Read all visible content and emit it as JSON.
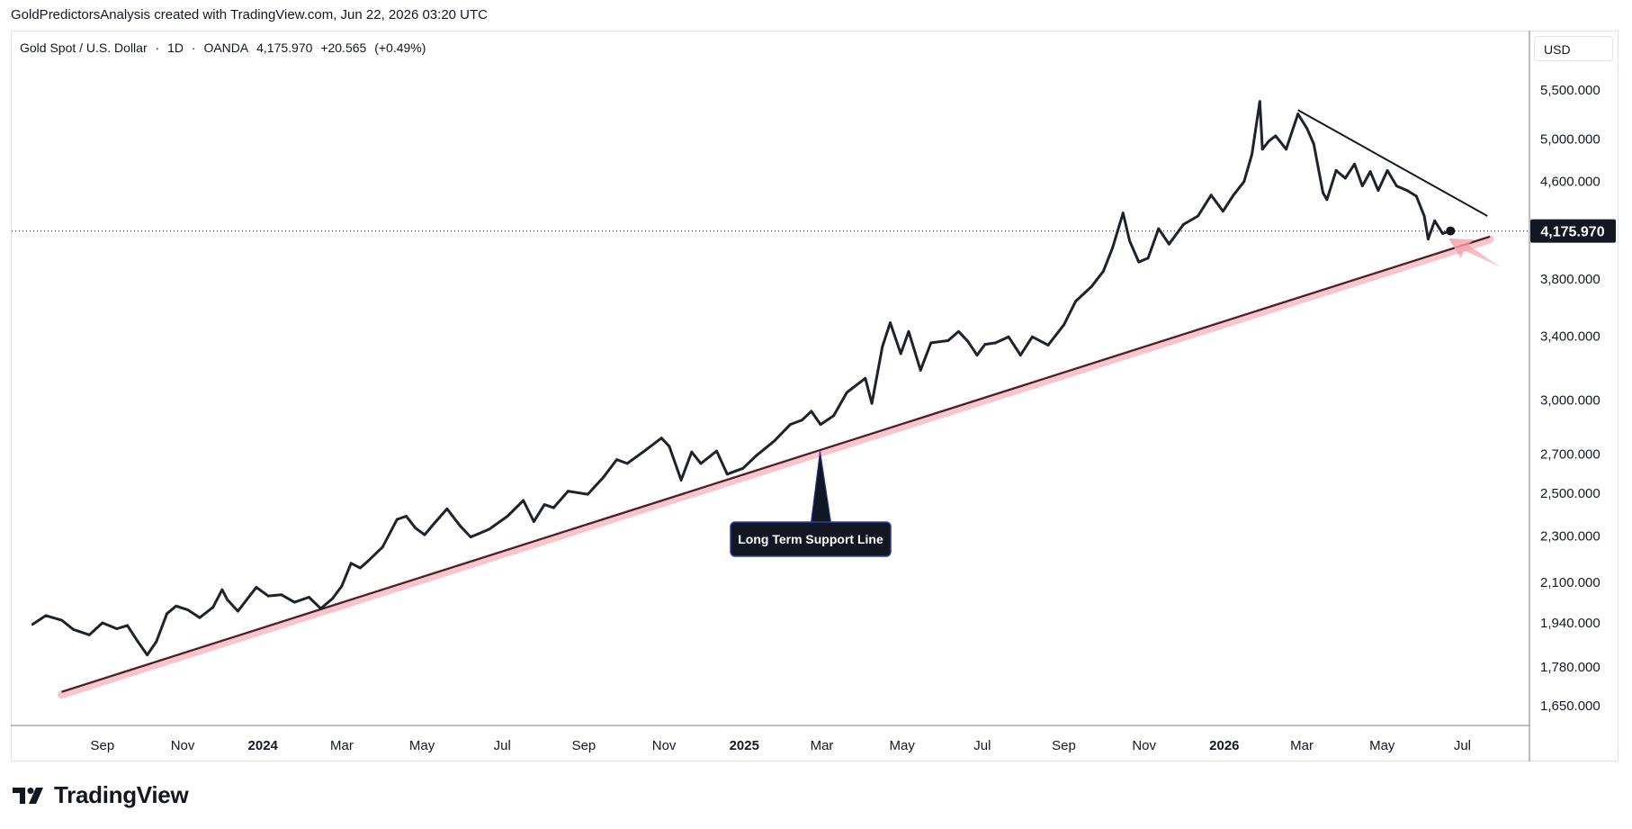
{
  "header": {
    "text": "GoldPredictorsAnalysis created with TradingView.com, Jun 22, 2026 03:20 UTC"
  },
  "symbol": {
    "name": "Gold Spot / U.S. Dollar",
    "interval": "1D",
    "exchange": "OANDA",
    "last": "4,175.970",
    "change": "+20.565",
    "change_pct": "(+0.49%)",
    "separator": "·"
  },
  "currency_label": "USD",
  "price_tag": "4,175.970",
  "annotation": {
    "label": "Long Term Support Line"
  },
  "brand": {
    "name": "TradingView"
  },
  "colors": {
    "price_line": "#1e222d",
    "support_line": "#4a1f24",
    "support_glow": "#f7c6cc",
    "arrow": "#f6a3ab",
    "annotation_bg": "#131722",
    "annotation_border": "#2f3ea8",
    "price_tag_bg": "#131722"
  },
  "chart_data": {
    "type": "line",
    "series": [
      {
        "points": [
          [
            "2023-07-10",
            1935
          ],
          [
            "2023-07-20",
            1968
          ],
          [
            "2023-08-01",
            1950
          ],
          [
            "2023-08-10",
            1915
          ],
          [
            "2023-08-22",
            1895
          ],
          [
            "2023-09-01",
            1940
          ],
          [
            "2023-09-12",
            1918
          ],
          [
            "2023-09-20",
            1930
          ],
          [
            "2023-09-28",
            1870
          ],
          [
            "2023-10-05",
            1822
          ],
          [
            "2023-10-12",
            1870
          ],
          [
            "2023-10-20",
            1975
          ],
          [
            "2023-10-27",
            2005
          ],
          [
            "2023-11-05",
            1990
          ],
          [
            "2023-11-14",
            1960
          ],
          [
            "2023-11-24",
            2000
          ],
          [
            "2023-12-01",
            2070
          ],
          [
            "2023-12-05",
            2030
          ],
          [
            "2023-12-13",
            1985
          ],
          [
            "2023-12-27",
            2080
          ],
          [
            "2024-01-05",
            2045
          ],
          [
            "2024-01-15",
            2050
          ],
          [
            "2024-01-25",
            2020
          ],
          [
            "2024-02-05",
            2040
          ],
          [
            "2024-02-14",
            1995
          ],
          [
            "2024-02-23",
            2035
          ],
          [
            "2024-03-01",
            2085
          ],
          [
            "2024-03-08",
            2180
          ],
          [
            "2024-03-15",
            2160
          ],
          [
            "2024-03-21",
            2190
          ],
          [
            "2024-04-01",
            2250
          ],
          [
            "2024-04-12",
            2375
          ],
          [
            "2024-04-19",
            2390
          ],
          [
            "2024-04-26",
            2335
          ],
          [
            "2024-05-03",
            2305
          ],
          [
            "2024-05-10",
            2355
          ],
          [
            "2024-05-20",
            2425
          ],
          [
            "2024-05-30",
            2345
          ],
          [
            "2024-06-07",
            2295
          ],
          [
            "2024-06-21",
            2330
          ],
          [
            "2024-07-05",
            2390
          ],
          [
            "2024-07-17",
            2465
          ],
          [
            "2024-07-25",
            2365
          ],
          [
            "2024-08-02",
            2445
          ],
          [
            "2024-08-09",
            2430
          ],
          [
            "2024-08-20",
            2510
          ],
          [
            "2024-09-04",
            2495
          ],
          [
            "2024-09-16",
            2580
          ],
          [
            "2024-09-26",
            2670
          ],
          [
            "2024-10-04",
            2650
          ],
          [
            "2024-10-18",
            2720
          ],
          [
            "2024-10-30",
            2785
          ],
          [
            "2024-11-05",
            2740
          ],
          [
            "2024-11-14",
            2565
          ],
          [
            "2024-11-22",
            2710
          ],
          [
            "2024-11-29",
            2650
          ],
          [
            "2024-12-11",
            2715
          ],
          [
            "2024-12-19",
            2595
          ],
          [
            "2024-12-31",
            2625
          ],
          [
            "2025-01-10",
            2690
          ],
          [
            "2025-01-24",
            2770
          ],
          [
            "2025-02-05",
            2860
          ],
          [
            "2025-02-14",
            2885
          ],
          [
            "2025-02-21",
            2935
          ],
          [
            "2025-02-28",
            2860
          ],
          [
            "2025-03-10",
            2910
          ],
          [
            "2025-03-20",
            3045
          ],
          [
            "2025-04-03",
            3130
          ],
          [
            "2025-04-08",
            2980
          ],
          [
            "2025-04-16",
            3330
          ],
          [
            "2025-04-22",
            3490
          ],
          [
            "2025-04-30",
            3285
          ],
          [
            "2025-05-06",
            3430
          ],
          [
            "2025-05-15",
            3180
          ],
          [
            "2025-05-23",
            3355
          ],
          [
            "2025-06-05",
            3370
          ],
          [
            "2025-06-13",
            3430
          ],
          [
            "2025-06-20",
            3365
          ],
          [
            "2025-06-27",
            3275
          ],
          [
            "2025-07-03",
            3345
          ],
          [
            "2025-07-11",
            3355
          ],
          [
            "2025-07-21",
            3395
          ],
          [
            "2025-07-30",
            3275
          ],
          [
            "2025-08-08",
            3395
          ],
          [
            "2025-08-20",
            3340
          ],
          [
            "2025-09-01",
            3475
          ],
          [
            "2025-09-10",
            3640
          ],
          [
            "2025-09-22",
            3745
          ],
          [
            "2025-10-01",
            3860
          ],
          [
            "2025-10-08",
            4040
          ],
          [
            "2025-10-16",
            4325
          ],
          [
            "2025-10-21",
            4095
          ],
          [
            "2025-10-28",
            3930
          ],
          [
            "2025-11-04",
            3960
          ],
          [
            "2025-11-12",
            4195
          ],
          [
            "2025-11-20",
            4070
          ],
          [
            "2025-12-01",
            4230
          ],
          [
            "2025-12-12",
            4300
          ],
          [
            "2025-12-22",
            4480
          ],
          [
            "2025-12-31",
            4340
          ],
          [
            "2026-01-08",
            4480
          ],
          [
            "2026-01-16",
            4600
          ],
          [
            "2026-01-22",
            4850
          ],
          [
            "2026-01-28",
            5380
          ],
          [
            "2026-01-30",
            4900
          ],
          [
            "2026-02-04",
            4980
          ],
          [
            "2026-02-09",
            5030
          ],
          [
            "2026-02-17",
            4900
          ],
          [
            "2026-02-26",
            5250
          ],
          [
            "2026-03-05",
            5100
          ],
          [
            "2026-03-10",
            4950
          ],
          [
            "2026-03-17",
            4500
          ],
          [
            "2026-03-20",
            4440
          ],
          [
            "2026-03-27",
            4700
          ],
          [
            "2026-04-03",
            4630
          ],
          [
            "2026-04-10",
            4760
          ],
          [
            "2026-04-16",
            4560
          ],
          [
            "2026-04-22",
            4690
          ],
          [
            "2026-04-28",
            4520
          ],
          [
            "2026-05-05",
            4700
          ],
          [
            "2026-05-12",
            4560
          ],
          [
            "2026-05-20",
            4520
          ],
          [
            "2026-05-27",
            4470
          ],
          [
            "2026-06-02",
            4300
          ],
          [
            "2026-06-05",
            4110
          ],
          [
            "2026-06-10",
            4260
          ],
          [
            "2026-06-16",
            4155
          ],
          [
            "2026-06-22",
            4175.97
          ]
        ]
      }
    ],
    "trendlines": [
      {
        "from": [
          "2023-08-01",
          1695
        ],
        "to": [
          "2026-07-22",
          4130
        ]
      },
      {
        "from": [
          "2026-02-26",
          5290
        ],
        "to": [
          "2026-07-20",
          4300
        ]
      }
    ],
    "y_scale": "log",
    "ylim": [
      1590,
      5800
    ],
    "xlim": [
      "2023-06-24",
      "2026-08-21"
    ],
    "yticks": [
      {
        "value": 1650,
        "label": "1,650.000"
      },
      {
        "value": 1780,
        "label": "1,780.000"
      },
      {
        "value": 1940,
        "label": "1,940.000"
      },
      {
        "value": 2100,
        "label": "2,100.000"
      },
      {
        "value": 2300,
        "label": "2,300.000"
      },
      {
        "value": 2500,
        "label": "2,500.000"
      },
      {
        "value": 2700,
        "label": "2,700.000"
      },
      {
        "value": 3000,
        "label": "3,000.000"
      },
      {
        "value": 3400,
        "label": "3,400.000"
      },
      {
        "value": 3800,
        "label": "3,800.000"
      },
      {
        "value": 4600,
        "label": "4,600.000"
      },
      {
        "value": 5000,
        "label": "5,000.000"
      },
      {
        "value": 5500,
        "label": "5,500.000"
      }
    ],
    "xticks": [
      {
        "date": "2023-09-01",
        "label": "Sep"
      },
      {
        "date": "2023-11-01",
        "label": "Nov"
      },
      {
        "date": "2024-01-01",
        "label": "2024",
        "bold": true
      },
      {
        "date": "2024-03-01",
        "label": "Mar"
      },
      {
        "date": "2024-05-01",
        "label": "May"
      },
      {
        "date": "2024-07-01",
        "label": "Jul"
      },
      {
        "date": "2024-09-01",
        "label": "Sep"
      },
      {
        "date": "2024-11-01",
        "label": "Nov"
      },
      {
        "date": "2025-01-01",
        "label": "2025",
        "bold": true
      },
      {
        "date": "2025-03-01",
        "label": "Mar"
      },
      {
        "date": "2025-05-01",
        "label": "May"
      },
      {
        "date": "2025-07-01",
        "label": "Jul"
      },
      {
        "date": "2025-09-01",
        "label": "Sep"
      },
      {
        "date": "2025-11-01",
        "label": "Nov"
      },
      {
        "date": "2026-01-01",
        "label": "2026",
        "bold": true
      },
      {
        "date": "2026-03-01",
        "label": "Mar"
      },
      {
        "date": "2026-05-01",
        "label": "May"
      },
      {
        "date": "2026-07-01",
        "label": "Jul"
      }
    ],
    "current_price": 4175.97,
    "grid": false
  }
}
